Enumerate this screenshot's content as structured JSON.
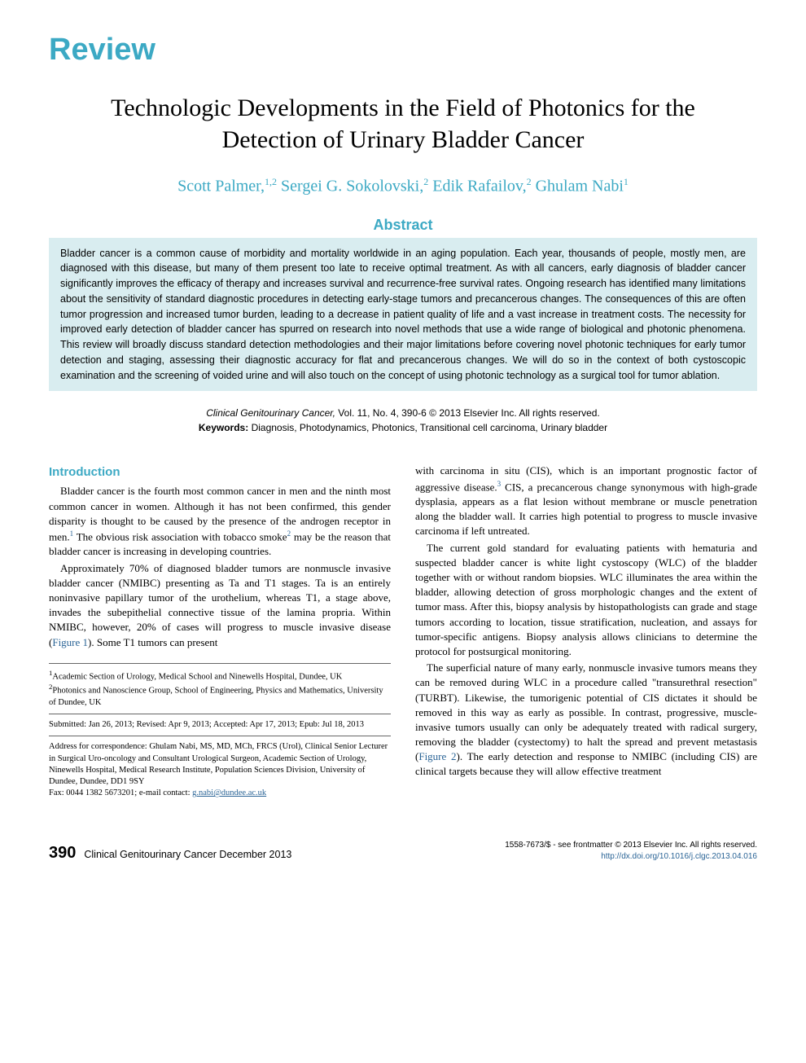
{
  "header": {
    "review_label": "Review",
    "title": "Technologic Developments in the Field of Photonics for the Detection of Urinary Bladder Cancer",
    "authors_html": "Scott Palmer,<sup>1,2</sup> Sergei G. Sokolovski,<sup>2</sup> Edik Rafailov,<sup>2</sup> Ghulam Nabi<sup>1</sup>"
  },
  "abstract": {
    "heading": "Abstract",
    "text": "Bladder cancer is a common cause of morbidity and mortality worldwide in an aging population. Each year, thousands of people, mostly men, are diagnosed with this disease, but many of them present too late to receive optimal treatment. As with all cancers, early diagnosis of bladder cancer significantly improves the efficacy of therapy and increases survival and recurrence-free survival rates. Ongoing research has identified many limitations about the sensitivity of standard diagnostic procedures in detecting early-stage tumors and precancerous changes. The consequences of this are often tumor progression and increased tumor burden, leading to a decrease in patient quality of life and a vast increase in treatment costs. The necessity for improved early detection of bladder cancer has spurred on research into novel methods that use a wide range of biological and photonic phenomena. This review will broadly discuss standard detection methodologies and their major limitations before covering novel photonic techniques for early tumor detection and staging, assessing their diagnostic accuracy for flat and precancerous changes. We will do so in the context of both cystoscopic examination and the screening of voided urine and will also touch on the concept of using photonic technology as a surgical tool for tumor ablation."
  },
  "citation": {
    "journal": "Clinical Genitourinary Cancer,",
    "vol_info": " Vol. 11, No. 4, 390-6 © 2013 Elsevier Inc. All rights reserved.",
    "keywords_label": "Keywords:",
    "keywords": " Diagnosis, Photodynamics, Photonics, Transitional cell carcinoma, Urinary bladder"
  },
  "body": {
    "intro_heading": "Introduction",
    "left_paras": [
      "Bladder cancer is the fourth most common cancer in men and the ninth most common cancer in women. Although it has not been confirmed, this gender disparity is thought to be caused by the presence of the androgen receptor in men.<sup>1</sup> The obvious risk association with tobacco smoke<sup>2</sup> may be the reason that bladder cancer is increasing in developing countries.",
      "Approximately 70% of diagnosed bladder tumors are nonmuscle invasive bladder cancer (NMIBC) presenting as Ta and T1 stages. Ta is an entirely noninvasive papillary tumor of the urothelium, whereas T1, a stage above, invades the subepithelial connective tissue of the lamina propria. Within NMIBC, however, 20% of cases will progress to muscle invasive disease (<span class=\"fig-link\">Figure 1</span>). Some T1 tumors can present"
    ],
    "right_paras": [
      "with carcinoma in situ (CIS), which is an important prognostic factor of aggressive disease.<sup>3</sup> CIS, a precancerous change synonymous with high-grade dysplasia, appears as a flat lesion without membrane or muscle penetration along the bladder wall. It carries high potential to progress to muscle invasive carcinoma if left untreated.",
      "The current gold standard for evaluating patients with hematuria and suspected bladder cancer is white light cystoscopy (WLC) of the bladder together with or without random biopsies. WLC illuminates the area within the bladder, allowing detection of gross morphologic changes and the extent of tumor mass. After this, biopsy analysis by histopathologists can grade and stage tumors according to location, tissue stratification, nucleation, and assays for tumor-specific antigens. Biopsy analysis allows clinicians to determine the protocol for postsurgical monitoring.",
      "The superficial nature of many early, nonmuscle invasive tumors means they can be removed during WLC in a procedure called \"transurethral resection\" (TURBT). Likewise, the tumorigenic potential of CIS dictates it should be removed in this way as early as possible. In contrast, progressive, muscle-invasive tumors usually can only be adequately treated with radical surgery, removing the bladder (cystectomy) to halt the spread and prevent metastasis (<span class=\"fig-link\">Figure 2</span>). The early detection and response to NMIBC (including CIS) are clinical targets because they will allow effective treatment"
    ]
  },
  "affiliations": {
    "affil1": "<sup>1</sup>Academic Section of Urology, Medical School and Ninewells Hospital, Dundee, UK",
    "affil2": "<sup>2</sup>Photonics and Nanoscience Group, School of Engineering, Physics and Mathematics, University of Dundee, UK",
    "dates": "Submitted: Jan 26, 2013; Revised: Apr 9, 2013; Accepted: Apr 17, 2013; Epub: Jul 18, 2013",
    "corr": "Address for correspondence: Ghulam Nabi, MS, MD, MCh, FRCS (Urol), Clinical Senior Lecturer in Surgical Uro-oncology and Consultant Urological Surgeon, Academic Section of Urology, Ninewells Hospital, Medical Research Institute, Population Sciences Division, University of Dundee, Dundee, DD1 9SY",
    "fax": "Fax: 0044 1382 5673201; e-mail contact: ",
    "email": "g.nabi@dundee.ac.uk"
  },
  "footer": {
    "page_num": "390",
    "journal_name": "Clinical Genitourinary Cancer",
    "issue_date": "   December 2013",
    "issn": "1558-7673/$ - see frontmatter © 2013 Elsevier Inc. All rights reserved.",
    "doi": "http://dx.doi.org/10.1016/j.clgc.2013.04.016"
  },
  "colors": {
    "accent": "#3ca9c4",
    "abstract_bg": "#d9edf0",
    "link": "#2a6496",
    "text": "#000000",
    "background": "#ffffff"
  }
}
